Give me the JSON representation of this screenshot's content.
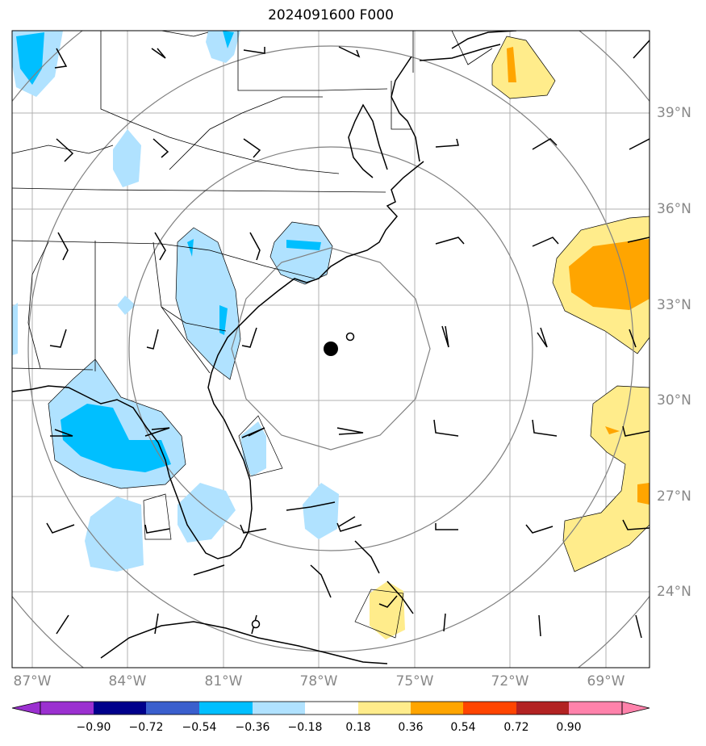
{
  "title": "2024091600 F000",
  "lat_labels": [
    "39°N",
    "36°N",
    "33°N",
    "30°N",
    "27°N",
    "24°N"
  ],
  "lon_labels": [
    "87°W",
    "84°W",
    "81°W",
    "78°W",
    "75°W",
    "72°W",
    "69°W"
  ],
  "colorbar": {
    "ticks": [
      "−0.90",
      "−0.72",
      "−0.54",
      "−0.36",
      "−0.18",
      "0.18",
      "0.36",
      "0.54",
      "0.72",
      "0.90"
    ],
    "colors": [
      "#9b30d0",
      "#00008b",
      "#3a5fcd",
      "#00bfff",
      "#b0e2ff",
      "#ffffff",
      "#ffec8b",
      "#ffa500",
      "#ff4500",
      "#b22222",
      "#ff82ab"
    ]
  },
  "colors": {
    "light_blue": "#b0e2ff",
    "blue": "#00bfff",
    "light_yellow": "#ffec8b",
    "orange": "#ffa500",
    "range_ring": "#808080",
    "grid": "#b0b0b0"
  },
  "markers": [
    {
      "name": "storm-center-marker",
      "kind": "filled-circle"
    },
    {
      "name": "secondary-center-marker",
      "kind": "open-circle"
    }
  ]
}
